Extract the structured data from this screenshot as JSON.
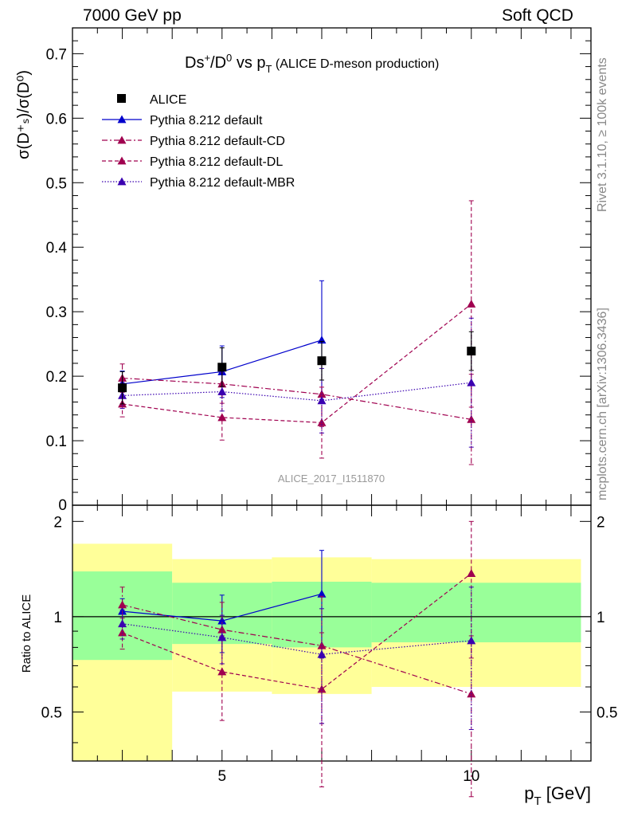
{
  "header": {
    "left": "7000 GeV pp",
    "right": "Soft QCD"
  },
  "side_labels": {
    "rivet": "Rivet 3.1.10, ≥ 100k events",
    "mcplots": "mcplots.cern.ch [arXiv:1306.3436]"
  },
  "colors": {
    "data": "#000000",
    "default": "#0000cc",
    "cd": "#a0004f",
    "dl": "#a0004f",
    "mbr": "#3a00b0",
    "band_inner": "#99ff99",
    "band_outer": "#ffff99"
  },
  "chart_data": [
    {
      "type": "scatter",
      "panel": "main",
      "title_main": "Ds",
      "title_sup": "+",
      "title_mid": "/D",
      "title_sup2": "0",
      "title_vs": " vs p",
      "title_sub": "T",
      "title_rest": " (ALICE D-meson production)",
      "ylabel": "σ(D⁺ₛ)/σ(D⁰)",
      "ylim": [
        0,
        0.74
      ],
      "yticks": [
        "0.1",
        "0.2",
        "0.3",
        "0.4",
        "0.5",
        "0.6",
        "0.7"
      ],
      "ytick_values": [
        0.1,
        0.2,
        0.3,
        0.4,
        0.5,
        0.6,
        0.7
      ],
      "y_zero_label": "0",
      "watermark": "ALICE_2017_I1511870",
      "legend_position": "top-left",
      "series": [
        {
          "name": "ALICE",
          "key": "data",
          "style": "square",
          "x": [
            3,
            5,
            7,
            10
          ],
          "y": [
            0.182,
            0.214,
            0.224,
            0.239
          ],
          "err": [
            0.025,
            0.03,
            0.03,
            0.03
          ]
        },
        {
          "name": "Pythia 8.212 default",
          "key": "default",
          "style": "solid",
          "x": [
            3,
            5,
            7
          ],
          "y": [
            0.188,
            0.207,
            0.256
          ],
          "err": [
            0.02,
            0.04,
            0.092
          ]
        },
        {
          "name": "Pythia 8.212 default-CD",
          "key": "cd",
          "style": "dashdot",
          "x": [
            3,
            5,
            7,
            10
          ],
          "y": [
            0.197,
            0.188,
            0.172,
            0.133
          ],
          "err": [
            0.022,
            0.03,
            0.05,
            0.07
          ]
        },
        {
          "name": "Pythia 8.212 default-DL",
          "key": "dl",
          "style": "dashed",
          "x": [
            3,
            5,
            7,
            10
          ],
          "y": [
            0.157,
            0.136,
            0.128,
            0.312
          ],
          "err": [
            0.02,
            0.035,
            0.055,
            0.16
          ]
        },
        {
          "name": "Pythia 8.212 default-MBR",
          "key": "mbr",
          "style": "dotted",
          "x": [
            3,
            5,
            7,
            10
          ],
          "y": [
            0.17,
            0.176,
            0.162,
            0.19
          ],
          "err": [
            0.02,
            0.03,
            0.05,
            0.1
          ]
        }
      ]
    },
    {
      "type": "scatter",
      "panel": "ratio",
      "ylabel": "Ratio to ALICE",
      "xlabel": "p",
      "xlabel_sub": "T",
      "xlabel_unit": " [GeV]",
      "xlim": [
        2,
        12.4
      ],
      "xticks": [
        "5",
        "10"
      ],
      "xtick_values": [
        5,
        10
      ],
      "ylim": [
        0.35,
        2.25
      ],
      "yticks": [
        "0.5",
        "1",
        "2"
      ],
      "ytick_values": [
        0.5,
        1,
        2
      ],
      "bands": [
        {
          "x": [
            2,
            4
          ],
          "inner": [
            0.73,
            1.39
          ],
          "outer": [
            0.35,
            1.7
          ]
        },
        {
          "x": [
            4,
            6
          ],
          "inner": [
            0.82,
            1.28
          ],
          "outer": [
            0.58,
            1.52
          ]
        },
        {
          "x": [
            6,
            8
          ],
          "inner": [
            0.8,
            1.29
          ],
          "outer": [
            0.57,
            1.54
          ]
        },
        {
          "x": [
            8,
            12.2
          ],
          "inner": [
            0.83,
            1.28
          ],
          "outer": [
            0.6,
            1.52
          ]
        }
      ],
      "series": [
        {
          "name": "Pythia 8.212 default",
          "key": "default",
          "style": "solid",
          "x": [
            3,
            5,
            7
          ],
          "y": [
            1.04,
            0.97,
            1.18
          ],
          "err": [
            0.1,
            0.2,
            0.44
          ]
        },
        {
          "name": "Pythia 8.212 default-CD",
          "key": "cd",
          "style": "dashdot",
          "x": [
            3,
            5,
            7,
            10
          ],
          "y": [
            1.09,
            0.91,
            0.81,
            0.57
          ],
          "err": [
            0.15,
            0.2,
            0.35,
            0.3
          ]
        },
        {
          "name": "Pythia 8.212 default-DL",
          "key": "dl",
          "style": "dashed",
          "x": [
            3,
            5,
            7,
            10
          ],
          "y": [
            0.89,
            0.67,
            0.59,
            1.37
          ],
          "err": [
            0.1,
            0.2,
            0.3,
            0.63
          ]
        },
        {
          "name": "Pythia 8.212 default-MBR",
          "key": "mbr",
          "style": "dotted",
          "x": [
            3,
            5,
            7,
            10
          ],
          "y": [
            0.95,
            0.86,
            0.76,
            0.84
          ],
          "err": [
            0.1,
            0.15,
            0.3,
            0.4
          ]
        }
      ]
    }
  ]
}
